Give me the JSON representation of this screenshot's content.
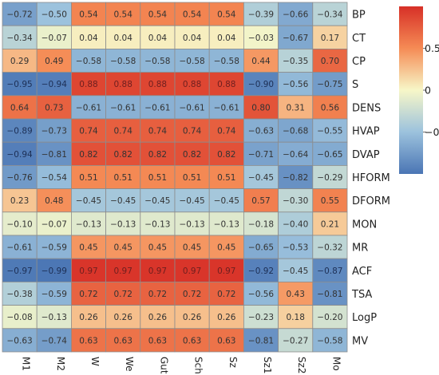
{
  "chart_data": {
    "type": "heatmap",
    "title": "",
    "rows": [
      "BP",
      "CT",
      "CP",
      "S",
      "DENS",
      "HVAP",
      "DVAP",
      "HFORM",
      "DFORM",
      "MON",
      "MR",
      "ACF",
      "TSA",
      "LogP",
      "MV"
    ],
    "columns": [
      "M1",
      "M2",
      "W",
      "We",
      "Gut",
      "Sch",
      "Sz",
      "Sz1",
      "Sz2",
      "Mo"
    ],
    "values": [
      [
        -0.72,
        -0.5,
        0.54,
        0.54,
        0.54,
        0.54,
        0.54,
        -0.39,
        -0.66,
        -0.34
      ],
      [
        -0.34,
        -0.07,
        0.04,
        0.04,
        0.04,
        0.04,
        0.04,
        -0.03,
        -0.67,
        0.17
      ],
      [
        0.29,
        0.49,
        -0.58,
        -0.58,
        -0.58,
        -0.58,
        -0.58,
        0.44,
        -0.35,
        0.7
      ],
      [
        -0.95,
        -0.94,
        0.88,
        0.88,
        0.88,
        0.88,
        0.88,
        -0.9,
        -0.56,
        -0.75
      ],
      [
        0.64,
        0.73,
        -0.61,
        -0.61,
        -0.61,
        -0.61,
        -0.61,
        0.8,
        0.31,
        0.56
      ],
      [
        -0.89,
        -0.73,
        0.74,
        0.74,
        0.74,
        0.74,
        0.74,
        -0.63,
        -0.68,
        -0.55
      ],
      [
        -0.94,
        -0.81,
        0.82,
        0.82,
        0.82,
        0.82,
        0.82,
        -0.71,
        -0.64,
        -0.65
      ],
      [
        -0.76,
        -0.54,
        0.51,
        0.51,
        0.51,
        0.51,
        0.51,
        -0.45,
        -0.82,
        -0.29
      ],
      [
        0.23,
        0.48,
        -0.45,
        -0.45,
        -0.45,
        -0.45,
        -0.45,
        0.57,
        -0.3,
        0.55
      ],
      [
        -0.1,
        -0.07,
        -0.13,
        -0.13,
        -0.13,
        -0.13,
        -0.13,
        -0.18,
        -0.4,
        0.21
      ],
      [
        -0.61,
        -0.59,
        0.45,
        0.45,
        0.45,
        0.45,
        0.45,
        -0.65,
        -0.53,
        -0.32
      ],
      [
        -0.97,
        -0.99,
        0.97,
        0.97,
        0.97,
        0.97,
        0.97,
        -0.92,
        -0.45,
        -0.87
      ],
      [
        -0.38,
        -0.59,
        0.72,
        0.72,
        0.72,
        0.72,
        0.72,
        -0.56,
        0.43,
        -0.81
      ],
      [
        -0.08,
        -0.13,
        0.26,
        0.26,
        0.26,
        0.26,
        0.26,
        -0.23,
        0.18,
        -0.2
      ],
      [
        -0.63,
        -0.74,
        0.63,
        0.63,
        0.63,
        0.63,
        0.63,
        -0.81,
        -0.27,
        -0.58
      ]
    ],
    "color_scale": {
      "low": "#4a75b4",
      "mid": "#f7f7c8",
      "high": "#d73027",
      "range": [
        -1,
        1
      ]
    },
    "legend": {
      "ticks": [
        0.5,
        0,
        -0.5
      ],
      "tick_labels": [
        "0.5",
        "0",
        "−0.5"
      ],
      "placement": "right"
    },
    "row_label_placement": "right",
    "column_label_placement": "bottom",
    "column_label_rotation": 90
  }
}
